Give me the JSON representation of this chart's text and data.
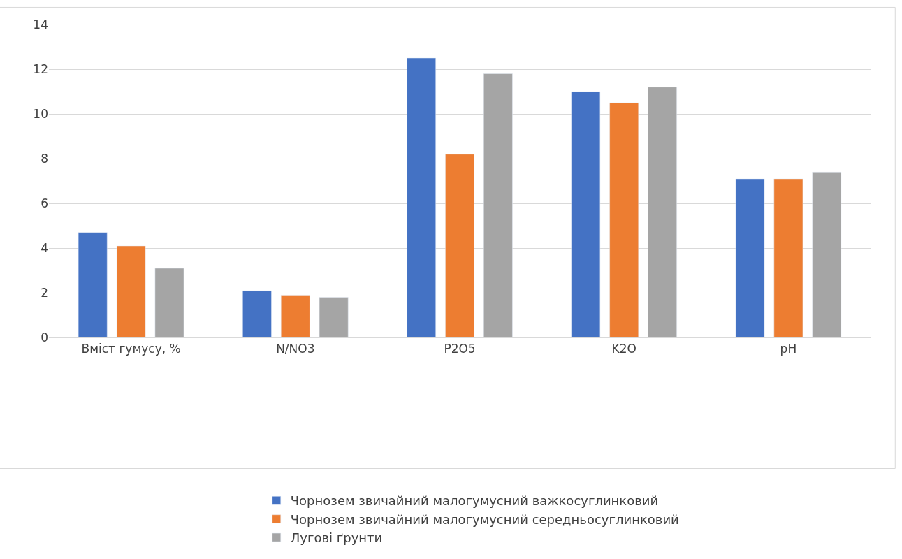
{
  "chart_data": {
    "type": "bar",
    "categories": [
      "Вміст гумусу, %",
      "N/NO3",
      "P2O5",
      "K2O",
      "pH"
    ],
    "series": [
      {
        "name": "Чорнозем звичайний малогумусний важкосуглинковий",
        "color": "#4472c4",
        "values": [
          4.7,
          2.1,
          12.5,
          11.0,
          7.1
        ]
      },
      {
        "name": "Чорнозем звичайний малогумусний середньосуглинковий",
        "color": "#ed7d31",
        "values": [
          4.1,
          1.9,
          8.2,
          10.5,
          7.1
        ]
      },
      {
        "name": "Лугові ґрунти",
        "color": "#a5a5a5",
        "values": [
          3.1,
          1.8,
          11.8,
          11.2,
          7.4
        ]
      }
    ],
    "ylim": [
      0,
      14
    ],
    "yticks": [
      0,
      2,
      4,
      6,
      8,
      10,
      12,
      14
    ],
    "grid": "y",
    "legend": "bottom"
  }
}
